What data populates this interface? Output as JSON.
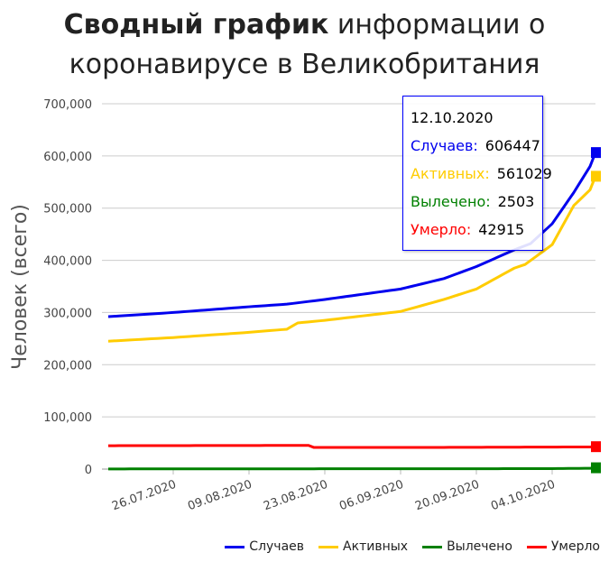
{
  "chart_data": {
    "type": "line",
    "title_bold": "Сводный график",
    "title_rest": " информации о коронавирусе в Великобритания",
    "ylabel": "Человек (всего)",
    "ylim": [
      0,
      700000
    ],
    "yticks": [
      "0",
      "100,000",
      "200,000",
      "300,000",
      "400,000",
      "500,000",
      "600,000",
      "700,000"
    ],
    "yticks_values": [
      0,
      100000,
      200000,
      300000,
      400000,
      500000,
      600000,
      700000
    ],
    "x_start": "14.07.2020",
    "x_end": "12.10.2020",
    "days": 91,
    "xticks": [
      {
        "label": "26.07.2020",
        "day": 12
      },
      {
        "label": "09.08.2020",
        "day": 26
      },
      {
        "label": "23.08.2020",
        "day": 40
      },
      {
        "label": "06.09.2020",
        "day": 54
      },
      {
        "label": "20.09.2020",
        "day": 68
      },
      {
        "label": "04.10.2020",
        "day": 82
      }
    ],
    "series": [
      {
        "name": "Случаев",
        "color": "#0000ee",
        "keypoints": [
          [
            0,
            292000
          ],
          [
            12,
            300000
          ],
          [
            26,
            311000
          ],
          [
            33,
            316000
          ],
          [
            40,
            325000
          ],
          [
            54,
            345000
          ],
          [
            62,
            365000
          ],
          [
            68,
            388000
          ],
          [
            75,
            420000
          ],
          [
            78,
            432000
          ],
          [
            82,
            470000
          ],
          [
            86,
            530000
          ],
          [
            89,
            580000
          ],
          [
            90,
            606447
          ]
        ]
      },
      {
        "name": "Активных",
        "color": "#ffcc00",
        "keypoints": [
          [
            0,
            245000
          ],
          [
            12,
            252000
          ],
          [
            26,
            262000
          ],
          [
            33,
            268000
          ],
          [
            35,
            280000
          ],
          [
            40,
            285000
          ],
          [
            54,
            302000
          ],
          [
            62,
            325000
          ],
          [
            68,
            345000
          ],
          [
            75,
            385000
          ],
          [
            77,
            392000
          ],
          [
            82,
            430000
          ],
          [
            86,
            505000
          ],
          [
            89,
            535000
          ],
          [
            90,
            561029
          ]
        ]
      },
      {
        "name": "Вылечено",
        "color": "#008000",
        "keypoints": [
          [
            0,
            300
          ],
          [
            80,
            800
          ],
          [
            89,
            1500
          ],
          [
            90,
            2503
          ]
        ]
      },
      {
        "name": "Умерло",
        "color": "#ff0000",
        "keypoints": [
          [
            0,
            44800
          ],
          [
            37,
            45400
          ],
          [
            38,
            41400
          ],
          [
            60,
            41500
          ],
          [
            89,
            42400
          ],
          [
            90,
            42915
          ]
        ]
      }
    ],
    "legend_position": "bottom-right",
    "tooltip": {
      "date": "12.10.2020",
      "rows": [
        {
          "label": "Случаев:",
          "value": "606447",
          "color": "#0000ee"
        },
        {
          "label": "Активных:",
          "value": "561029",
          "color": "#ffcc00"
        },
        {
          "label": "Вылечено:",
          "value": "2503",
          "color": "#008000"
        },
        {
          "label": "Умерло:",
          "value": "42915",
          "color": "#ff0000"
        }
      ]
    }
  }
}
